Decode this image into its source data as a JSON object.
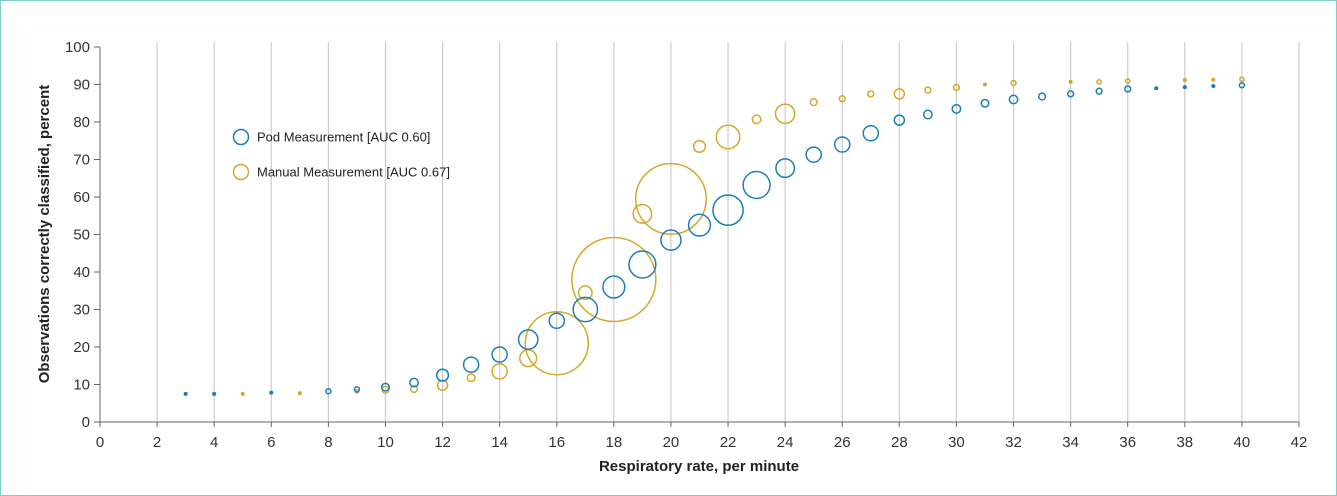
{
  "chart_data": {
    "type": "scatter",
    "xlabel": "Respiratory rate, per minute",
    "ylabel": "Observations correctly classified, percent",
    "xlim": [
      0,
      42
    ],
    "ylim": [
      0,
      100
    ],
    "x_ticks": [
      "0",
      "2",
      "4",
      "6",
      "8",
      "10",
      "12",
      "14",
      "16",
      "18",
      "20",
      "22",
      "24",
      "26",
      "28",
      "30",
      "32",
      "34",
      "36",
      "38",
      "40",
      "42"
    ],
    "y_ticks": [
      "0",
      "10",
      "20",
      "30",
      "40",
      "50",
      "60",
      "70",
      "80",
      "90",
      "100"
    ],
    "grid": "vertical",
    "legend_position": "upper-left",
    "series": [
      {
        "name": "Pod Measurement [AUC 0.60]",
        "color": "#1a7fb8",
        "points": [
          {
            "x": 3,
            "y": 7.5,
            "size": 0.3
          },
          {
            "x": 4,
            "y": 7.5,
            "size": 0.3
          },
          {
            "x": 6,
            "y": 7.8,
            "size": 0.3
          },
          {
            "x": 8,
            "y": 8.2,
            "size": 0.6
          },
          {
            "x": 9,
            "y": 8.7,
            "size": 0.6
          },
          {
            "x": 10,
            "y": 9.3,
            "size": 0.9
          },
          {
            "x": 11,
            "y": 10.5,
            "size": 1.0
          },
          {
            "x": 12,
            "y": 12.5,
            "size": 1.4
          },
          {
            "x": 13,
            "y": 15.3,
            "size": 1.8
          },
          {
            "x": 14,
            "y": 18.0,
            "size": 1.8
          },
          {
            "x": 15,
            "y": 22.0,
            "size": 2.3
          },
          {
            "x": 16,
            "y": 27.0,
            "size": 1.8
          },
          {
            "x": 17,
            "y": 30.0,
            "size": 2.9
          },
          {
            "x": 18,
            "y": 36.0,
            "size": 2.6
          },
          {
            "x": 19,
            "y": 42.0,
            "size": 3.2
          },
          {
            "x": 20,
            "y": 48.5,
            "size": 2.4
          },
          {
            "x": 21,
            "y": 52.5,
            "size": 2.6
          },
          {
            "x": 22,
            "y": 56.5,
            "size": 3.6
          },
          {
            "x": 23,
            "y": 63.2,
            "size": 3.2
          },
          {
            "x": 24,
            "y": 67.7,
            "size": 2.2
          },
          {
            "x": 25,
            "y": 71.3,
            "size": 1.8
          },
          {
            "x": 26,
            "y": 74.0,
            "size": 1.8
          },
          {
            "x": 27,
            "y": 77.0,
            "size": 1.8
          },
          {
            "x": 28,
            "y": 80.5,
            "size": 1.2
          },
          {
            "x": 29,
            "y": 82.0,
            "size": 1.0
          },
          {
            "x": 30,
            "y": 83.5,
            "size": 1.0
          },
          {
            "x": 31,
            "y": 85.0,
            "size": 0.9
          },
          {
            "x": 32,
            "y": 86.0,
            "size": 1.0
          },
          {
            "x": 33,
            "y": 86.8,
            "size": 0.8
          },
          {
            "x": 34,
            "y": 87.5,
            "size": 0.7
          },
          {
            "x": 35,
            "y": 88.2,
            "size": 0.7
          },
          {
            "x": 36,
            "y": 88.8,
            "size": 0.7
          },
          {
            "x": 37,
            "y": 89.0,
            "size": 0.3
          },
          {
            "x": 38,
            "y": 89.3,
            "size": 0.3
          },
          {
            "x": 39,
            "y": 89.6,
            "size": 0.3
          },
          {
            "x": 40,
            "y": 89.8,
            "size": 0.6
          }
        ]
      },
      {
        "name": "Manual Measurement [AUC 0.67]",
        "color": "#d4a82c",
        "points": [
          {
            "x": 5,
            "y": 7.5,
            "size": 0.3
          },
          {
            "x": 7,
            "y": 7.7,
            "size": 0.3
          },
          {
            "x": 9,
            "y": 8.2,
            "size": 0.4
          },
          {
            "x": 10,
            "y": 8.6,
            "size": 0.8
          },
          {
            "x": 11,
            "y": 8.8,
            "size": 0.8
          },
          {
            "x": 12,
            "y": 9.8,
            "size": 1.2
          },
          {
            "x": 13,
            "y": 11.8,
            "size": 0.9
          },
          {
            "x": 14,
            "y": 13.5,
            "size": 1.8
          },
          {
            "x": 15,
            "y": 17.0,
            "size": 2.0
          },
          {
            "x": 16,
            "y": 21.0,
            "size": 7.5
          },
          {
            "x": 17,
            "y": 34.5,
            "size": 1.6
          },
          {
            "x": 18,
            "y": 38.0,
            "size": 10.0
          },
          {
            "x": 19,
            "y": 55.5,
            "size": 2.2
          },
          {
            "x": 20,
            "y": 59.5,
            "size": 8.4
          },
          {
            "x": 21,
            "y": 73.5,
            "size": 1.4
          },
          {
            "x": 22,
            "y": 76.0,
            "size": 2.8
          },
          {
            "x": 23,
            "y": 80.7,
            "size": 1.0
          },
          {
            "x": 24,
            "y": 82.2,
            "size": 2.3
          },
          {
            "x": 25,
            "y": 85.3,
            "size": 0.8
          },
          {
            "x": 26,
            "y": 86.2,
            "size": 0.7
          },
          {
            "x": 27,
            "y": 87.5,
            "size": 0.7
          },
          {
            "x": 28,
            "y": 87.5,
            "size": 1.2
          },
          {
            "x": 29,
            "y": 88.5,
            "size": 0.7
          },
          {
            "x": 30,
            "y": 89.2,
            "size": 0.7
          },
          {
            "x": 31,
            "y": 90.0,
            "size": 0.3
          },
          {
            "x": 32,
            "y": 90.4,
            "size": 0.6
          },
          {
            "x": 34,
            "y": 90.7,
            "size": 0.3
          },
          {
            "x": 35,
            "y": 90.7,
            "size": 0.5
          },
          {
            "x": 36,
            "y": 90.9,
            "size": 0.5
          },
          {
            "x": 38,
            "y": 91.2,
            "size": 0.3
          },
          {
            "x": 39,
            "y": 91.3,
            "size": 0.3
          },
          {
            "x": 40,
            "y": 91.4,
            "size": 0.5
          }
        ]
      }
    ]
  }
}
